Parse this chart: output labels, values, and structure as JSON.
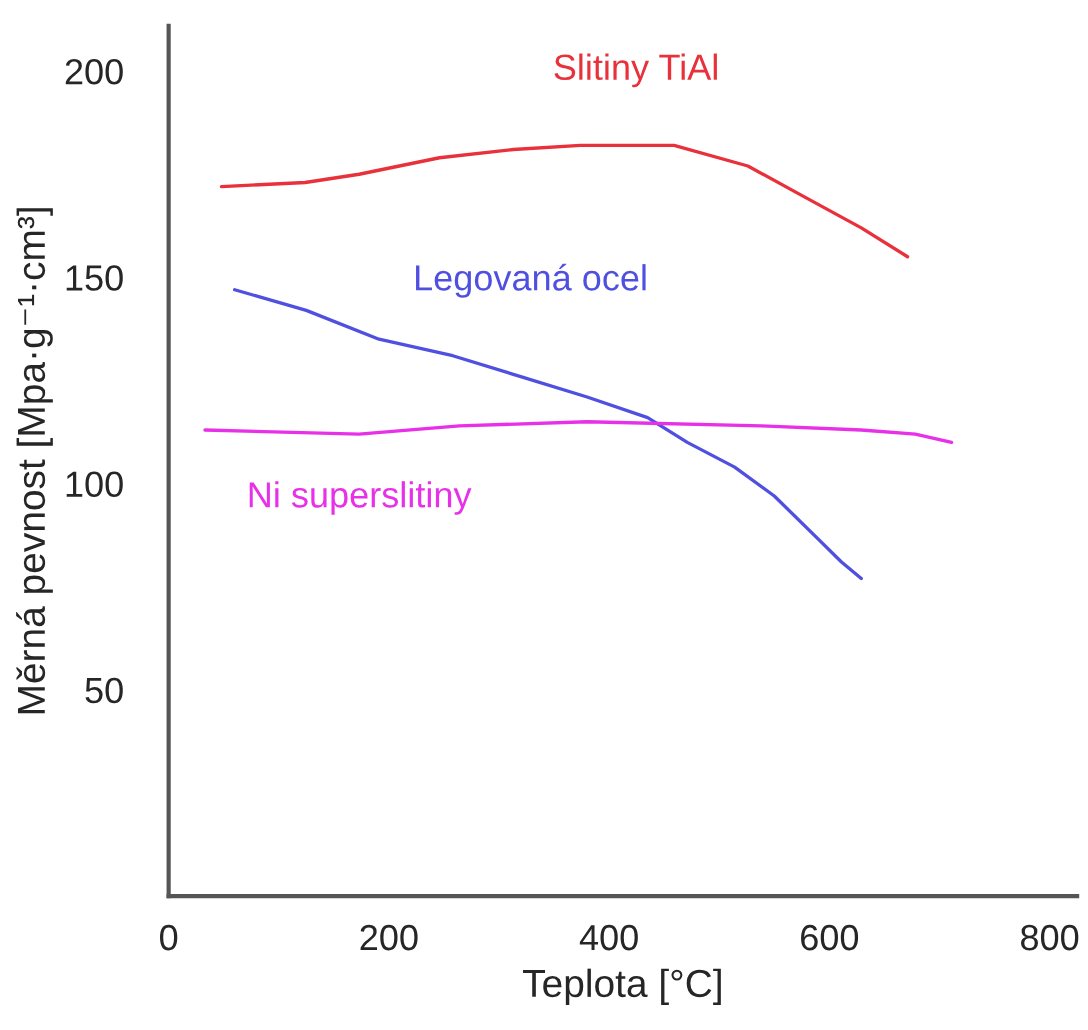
{
  "chart_data": {
    "type": "line",
    "xlabel": "Teplota [°C]",
    "ylabel": "Měrná pevnost [Mpa·g⁻¹·cm³]",
    "xlim": [
      0,
      825
    ],
    "xticks": [
      0,
      200,
      400,
      600,
      800
    ],
    "ylim": [
      0,
      211
    ],
    "yticks": [
      50,
      100,
      150,
      200
    ],
    "grid": false,
    "legend": false,
    "marker": "none",
    "line_style": "solid",
    "series": [
      {
        "name": "Slitiny TiAl",
        "color": "#e8313a",
        "x": [
          48,
          124,
          173,
          246,
          313,
          374,
          459,
          526,
          574,
          629,
          671
        ],
        "values": [
          172,
          173,
          175,
          179,
          181,
          182,
          182,
          177,
          170,
          162,
          155
        ]
      },
      {
        "name": "Legovaná ocel",
        "color": "#5050e0",
        "x": [
          60,
          125,
          191,
          258,
          319,
          380,
          435,
          471,
          514,
          550,
          592,
          611,
          629
        ],
        "values": [
          147,
          142,
          135,
          131,
          126,
          121,
          116,
          110,
          104,
          97,
          86,
          81,
          77
        ]
      },
      {
        "name": "Ni superslitiny",
        "color": "#e830e8",
        "x": [
          33,
          173,
          264,
          380,
          538,
          629,
          678,
          711
        ],
        "values": [
          113,
          112,
          114,
          115,
          114,
          113,
          112,
          110
        ]
      }
    ]
  }
}
